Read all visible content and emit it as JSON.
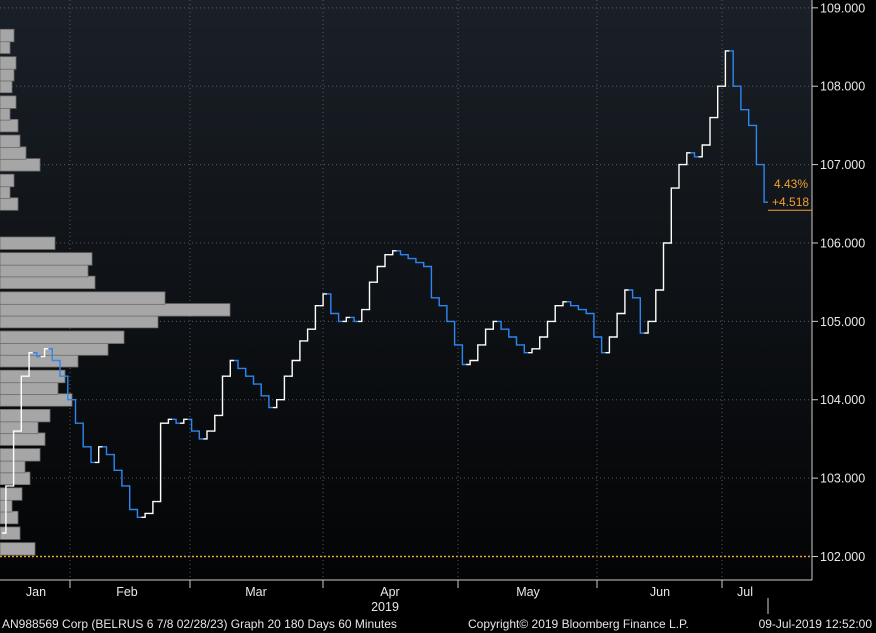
{
  "chart_data": {
    "type": "line",
    "year_label": "2019",
    "x_ticks": [
      "Jan",
      "Feb",
      "Mar",
      "Apr",
      "May",
      "Jun",
      "Jul"
    ],
    "y_ticks": [
      "102.000",
      "103.000",
      "104.000",
      "105.000",
      "106.000",
      "107.000",
      "108.000",
      "109.000"
    ],
    "ylim": [
      101.7,
      109.1
    ],
    "grid": true,
    "reference_line": 102.0,
    "last_value_labels": {
      "change_pct": "4.43%",
      "change_abs": "+4.518"
    },
    "last_value": 106.52,
    "series": [
      {
        "values": [
          102.3,
          102.9,
          103.6,
          104.3,
          104.6,
          104.55,
          104.65,
          104.5,
          104.3,
          104.0,
          103.7,
          103.4,
          103.2,
          103.4,
          103.3,
          103.1,
          102.9,
          102.6,
          102.5,
          102.55,
          102.7,
          103.7,
          103.75,
          103.7,
          103.75,
          103.6,
          103.5,
          103.6,
          103.8,
          104.3,
          104.5,
          104.4,
          104.3,
          104.2,
          104.05,
          103.9,
          104.0,
          104.3,
          104.5,
          104.75,
          104.9,
          105.2,
          105.35,
          105.1,
          105.0,
          105.05,
          105.0,
          105.15,
          105.5,
          105.7,
          105.85,
          105.9,
          105.85,
          105.8,
          105.75,
          105.7,
          105.3,
          105.2,
          105.0,
          104.7,
          104.45,
          104.5,
          104.7,
          104.9,
          105.0,
          104.9,
          104.8,
          104.7,
          104.6,
          104.65,
          104.8,
          105.0,
          105.2,
          105.25,
          105.2,
          105.15,
          105.1,
          104.8,
          104.6,
          104.8,
          105.1,
          105.4,
          105.3,
          104.85,
          105.0,
          105.4,
          106.0,
          106.7,
          107.0,
          107.15,
          107.1,
          107.25,
          107.6,
          108.0,
          108.45,
          108.0,
          107.7,
          107.5,
          107.0,
          106.52
        ]
      }
    ],
    "volume_profile": {
      "price_levels": [
        102.1,
        102.3,
        102.5,
        102.65,
        102.8,
        103.0,
        103.15,
        103.3,
        103.5,
        103.65,
        103.8,
        104.0,
        104.15,
        104.3,
        104.5,
        104.65,
        104.8,
        105.0,
        105.15,
        105.3,
        105.5,
        105.65,
        105.8,
        106.0,
        106.5,
        106.65,
        106.8,
        107.0,
        107.15,
        107.3,
        107.5,
        107.65,
        107.8,
        108.0,
        108.15,
        108.3,
        108.5,
        108.65
      ],
      "counts": [
        35,
        20,
        18,
        12,
        22,
        30,
        25,
        40,
        45,
        38,
        50,
        72,
        58,
        65,
        78,
        108,
        124,
        158,
        230,
        165,
        95,
        88,
        92,
        55,
        18,
        10,
        14,
        40,
        26,
        20,
        18,
        10,
        16,
        12,
        14,
        16,
        10,
        14
      ]
    },
    "colors": {
      "line_up": "#ffffff",
      "line_down": "#2e86f2",
      "grid": "#555a60",
      "reference": "#f0a030",
      "histogram": "#a6a6a6",
      "label": "#f0a030"
    }
  },
  "footer": {
    "left": "AN988569 Corp (BELRUS 6 7/8 02/28/23) Graph 20 180 Days 60 Minutes",
    "middle": "Copyright© 2019 Bloomberg Finance L.P.",
    "right": "09-Jul-2019 12:52:00"
  }
}
